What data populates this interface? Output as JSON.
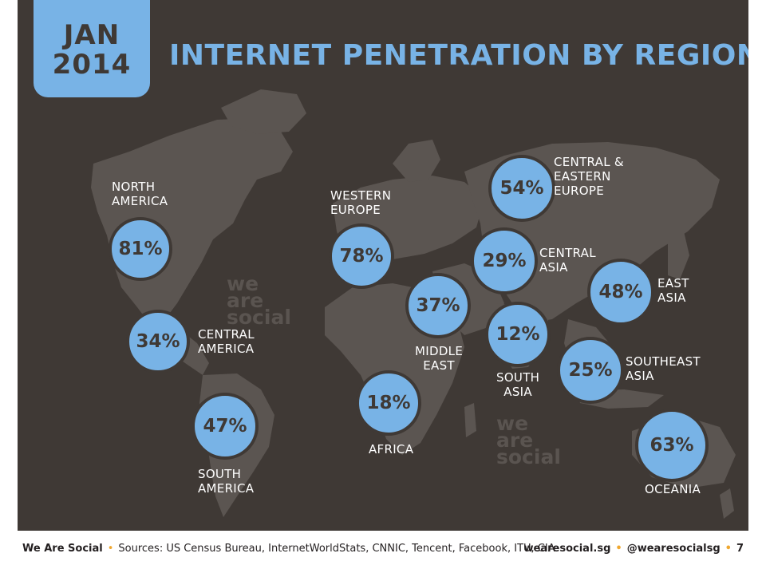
{
  "header": {
    "date_month": "JAN",
    "date_year": "2014",
    "title": "INTERNET PENETRATION BY REGION"
  },
  "colors": {
    "background": "#3f3935",
    "landmass": "#5b5551",
    "accent": "#78b3e6",
    "text_light": "#ffffff",
    "bullet": "#f0a830"
  },
  "regions": [
    {
      "name_line1": "NORTH",
      "name_line2": "AMERICA",
      "value": "81%"
    },
    {
      "name_line1": "CENTRAL",
      "name_line2": "AMERICA",
      "value": "34%"
    },
    {
      "name_line1": "SOUTH",
      "name_line2": "AMERICA",
      "value": "47%"
    },
    {
      "name_line1": "WESTERN",
      "name_line2": "EUROPE",
      "value": "78%"
    },
    {
      "name_line1": "MIDDLE",
      "name_line2": "EAST",
      "value": "37%"
    },
    {
      "name_line1": "AFRICA",
      "name_line2": "",
      "value": "18%"
    },
    {
      "name_line1": "CENTRAL &",
      "name_line2": "EASTERN",
      "name_line3": "EUROPE",
      "value": "54%"
    },
    {
      "name_line1": "CENTRAL",
      "name_line2": "ASIA",
      "value": "29%"
    },
    {
      "name_line1": "SOUTH",
      "name_line2": "ASIA",
      "value": "12%"
    },
    {
      "name_line1": "EAST",
      "name_line2": "ASIA",
      "value": "48%"
    },
    {
      "name_line1": "SOUTHEAST",
      "name_line2": "ASIA",
      "value": "25%"
    },
    {
      "name_line1": "OCEANIA",
      "name_line2": "",
      "value": "63%"
    }
  ],
  "watermark": {
    "line1": "we",
    "line2": "are",
    "line3": "social"
  },
  "footer": {
    "brand": "We Are Social",
    "sources": "Sources: US Census Bureau, InternetWorldStats, CNNIC, Tencent, Facebook, ITU, CIA",
    "site": "wearesocial.sg",
    "handle": "@wearesocialsg",
    "page": "7",
    "bullet": "•"
  }
}
